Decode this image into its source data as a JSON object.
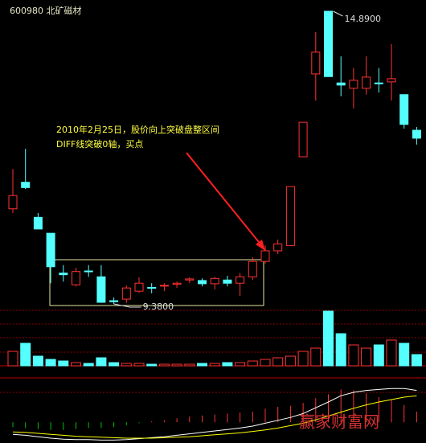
{
  "chart_data": [
    {
      "type": "candlestick",
      "title": "600980 北矿磁材",
      "open": [
        11.17,
        11.67,
        11.01,
        10.71,
        9.96,
        9.74,
        10.0,
        9.89,
        9.44,
        9.47,
        9.62,
        9.69,
        9.72,
        9.75,
        9.83,
        9.82,
        9.76,
        9.83,
        9.77,
        9.89,
        10.18,
        10.38,
        10.48,
        12.15,
        13.71,
        14.89,
        13.54,
        13.44,
        13.44,
        13.54,
        13.56,
        13.32,
        12.65
      ],
      "high": [
        11.92,
        12.3,
        11.09,
        10.71,
        10.11,
        10.06,
        10.11,
        10.11,
        9.5,
        9.73,
        9.88,
        9.77,
        9.77,
        9.8,
        9.88,
        9.86,
        9.89,
        9.91,
        9.96,
        10.26,
        10.48,
        10.59,
        11.59,
        12.8,
        14.5,
        14.89,
        14.04,
        13.82,
        14.04,
        13.82,
        14.27,
        13.32,
        12.71
      ],
      "low": [
        11.09,
        11.54,
        10.79,
        9.77,
        9.8,
        9.71,
        9.89,
        9.4,
        9.38,
        9.4,
        9.59,
        9.58,
        9.62,
        9.68,
        9.77,
        9.71,
        9.65,
        9.71,
        9.53,
        9.83,
        10.14,
        10.32,
        10.48,
        12.15,
        13.21,
        13.66,
        13.29,
        13.06,
        13.32,
        13.36,
        13.21,
        12.68,
        12.38
      ],
      "close": [
        11.42,
        11.57,
        10.79,
        10.08,
        9.93,
        9.99,
        9.99,
        9.41,
        9.42,
        9.68,
        9.77,
        9.68,
        9.73,
        9.77,
        9.85,
        9.76,
        9.86,
        9.77,
        9.89,
        10.18,
        10.38,
        10.51,
        11.59,
        12.8,
        14.12,
        13.66,
        13.5,
        13.59,
        13.65,
        13.53,
        13.62,
        12.76,
        12.5
      ],
      "up_color": "#ff3232",
      "down_color": "#54ffff",
      "ylim": [
        9.38,
        14.89
      ],
      "high_label": {
        "value": 14.89,
        "label": "14.8900"
      },
      "low_label": {
        "value": 9.38,
        "label": "9.3800"
      },
      "annotations": [
        "2010年2月25日，股价向上突破盘整区间",
        "DIFF线突破0轴，买点"
      ]
    },
    {
      "type": "volume",
      "values": [
        18,
        28,
        12,
        8,
        6,
        4,
        3,
        10,
        4,
        3,
        3,
        2,
        2,
        2,
        2,
        3,
        3,
        4,
        4,
        6,
        8,
        10,
        12,
        18,
        22,
        68,
        40,
        26,
        22,
        26,
        32,
        28,
        14
      ],
      "ylim": [
        0,
        68
      ]
    },
    {
      "type": "macd",
      "series": [
        {
          "color": "#ffffff",
          "values": [
            -0.25,
            -0.27,
            -0.3,
            -0.33,
            -0.35,
            -0.36,
            -0.36,
            -0.37,
            -0.37,
            -0.36,
            -0.34,
            -0.32,
            -0.3,
            -0.27,
            -0.24,
            -0.21,
            -0.18,
            -0.15,
            -0.12,
            -0.08,
            -0.02,
            0.04,
            0.1,
            0.18,
            0.3,
            0.42,
            0.55,
            0.62,
            0.66,
            0.68,
            0.7,
            0.7,
            0.66
          ]
        },
        {
          "color": "#ffff00",
          "values": [
            -0.2,
            -0.21,
            -0.23,
            -0.25,
            -0.27,
            -0.29,
            -0.3,
            -0.31,
            -0.32,
            -0.33,
            -0.33,
            -0.33,
            -0.32,
            -0.31,
            -0.3,
            -0.28,
            -0.26,
            -0.24,
            -0.22,
            -0.19,
            -0.16,
            -0.12,
            -0.07,
            -0.02,
            0.05,
            0.13,
            0.21,
            0.29,
            0.36,
            0.42,
            0.47,
            0.52,
            0.55
          ]
        }
      ],
      "bars": [
        -0.1,
        -0.12,
        -0.14,
        -0.16,
        -0.16,
        -0.14,
        -0.12,
        -0.12,
        -0.1,
        -0.06,
        -0.02,
        0.02,
        0.04,
        0.08,
        0.12,
        0.14,
        0.16,
        0.18,
        0.2,
        0.22,
        0.28,
        0.32,
        0.34,
        0.4,
        0.5,
        0.58,
        0.68,
        0.66,
        0.6,
        0.52,
        0.46,
        0.36,
        0.22
      ],
      "bar_colors": {
        "positive": "#ff3232",
        "negative": "#00c000"
      },
      "ylim": [
        -0.43,
        0.92
      ]
    }
  ],
  "watermark": "赢家财富网"
}
